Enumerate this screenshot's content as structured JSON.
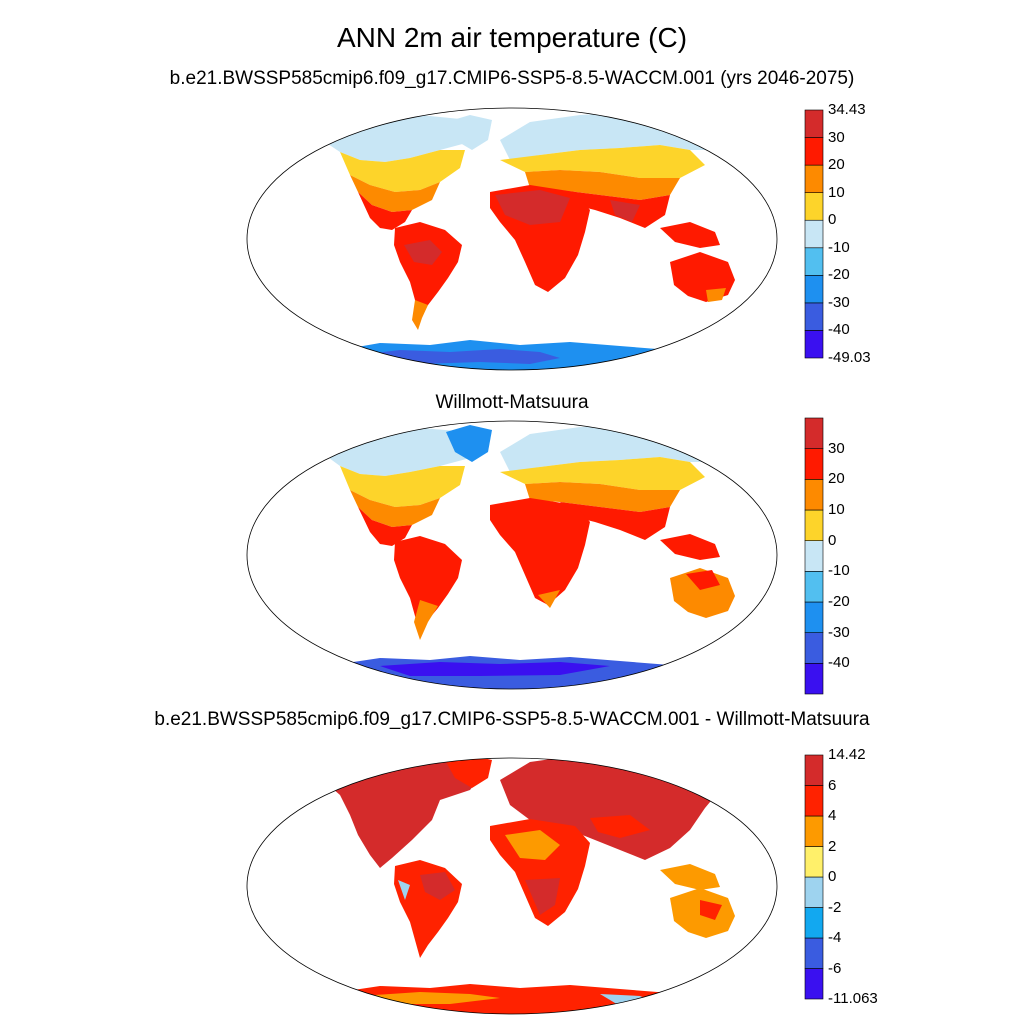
{
  "title": "ANN 2m air temperature (C)",
  "panels": [
    {
      "title": "b.e21.BWSSP585cmip6.f09_g17.CMIP6-SSP5-8.5-WACCM.001 (yrs 2046-2075)",
      "colorbar": {
        "colors": [
          "#3a10f0",
          "#3a5ce0",
          "#1e90f0",
          "#52bff0",
          "#c8e6f5",
          "#fdd42a",
          "#fd8a00",
          "#ff1a00",
          "#d42b2b"
        ],
        "labels": [
          "-49.03",
          "-40",
          "-30",
          "-20",
          "-10",
          "0",
          "10",
          "20",
          "30",
          "34.43"
        ]
      }
    },
    {
      "title": "Willmott-Matsuura",
      "colorbar": {
        "colors": [
          "#3a10f0",
          "#3a5ce0",
          "#1e90f0",
          "#52bff0",
          "#c8e6f5",
          "#fdd42a",
          "#fd8a00",
          "#ff1a00",
          "#d42b2b"
        ],
        "labels": [
          "",
          "-40",
          "-30",
          "-20",
          "-10",
          "0",
          "10",
          "20",
          "30",
          ""
        ]
      }
    },
    {
      "title": "b.e21.BWSSP585cmip6.f09_g17.CMIP6-SSP5-8.5-WACCM.001 - Willmott-Matsuura",
      "colorbar": {
        "colors": [
          "#3a10f0",
          "#3a5ce0",
          "#12a8f0",
          "#9ed3ef",
          "#fff06a",
          "#fd9a00",
          "#ff2200",
          "#d42b2b"
        ],
        "labels": [
          "-11.063",
          "-6",
          "-4",
          "-2",
          "0",
          "2",
          "4",
          "6",
          "14.42"
        ]
      }
    }
  ]
}
